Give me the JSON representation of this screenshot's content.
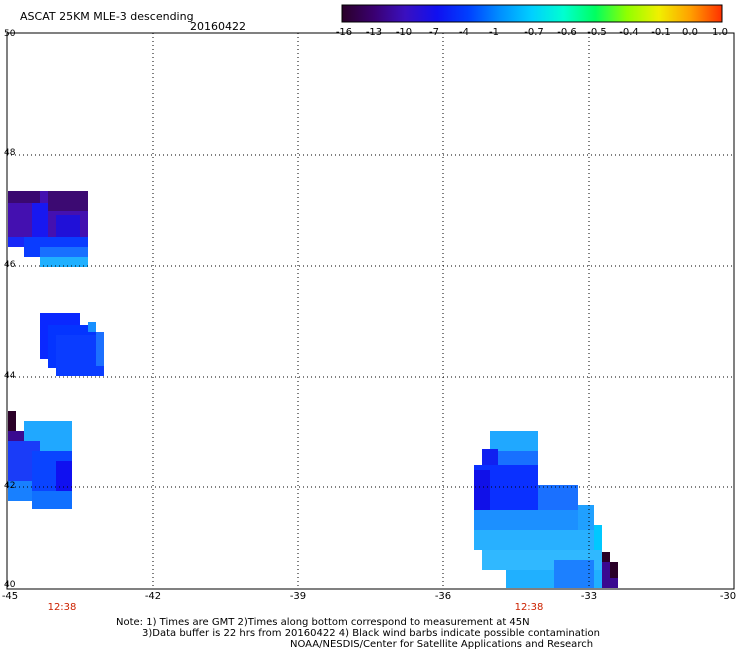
{
  "title": "ASCAT 25KM MLE-3 descending",
  "date": "20160422",
  "colorbar": {
    "labels": [
      "-16",
      "-13",
      "-10",
      "-7",
      "-4",
      "-1",
      "-0.7",
      "-0.6",
      "-0.5",
      "-0.4",
      "-0.1",
      "0.0",
      "1.0"
    ],
    "colors": [
      "#2a0028",
      "#3a0070",
      "#3a10c0",
      "#1010f0",
      "#0040ff",
      "#0090ff",
      "#00d0ff",
      "#00ffd0",
      "#00ff60",
      "#90ff00",
      "#f0f000",
      "#ffa000",
      "#ff3000"
    ]
  },
  "axes": {
    "lat_labels": [
      "50",
      "48",
      "46",
      "44",
      "42",
      "40"
    ],
    "lon_labels": [
      "-45",
      "-42",
      "-39",
      "-36",
      "-33",
      "-30"
    ]
  },
  "time_labels": [
    "12:38",
    "12:38"
  ],
  "notes": {
    "line1": "Note: 1) Times are GMT 2)Times along bottom correspond to measurement at 45N",
    "line2": "3)Data buffer is 22 hrs from 20160422 4) Black wind barbs indicate possible contamination",
    "line3": "NOAA/NESDIS/Center for Satellite Applications and Research"
  }
}
